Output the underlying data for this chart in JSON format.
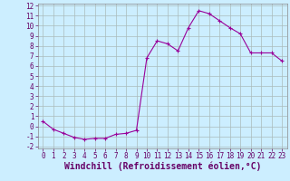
{
  "xlabel": "Windchill (Refroidissement éolien,°C)",
  "x": [
    0,
    1,
    2,
    3,
    4,
    5,
    6,
    7,
    8,
    9,
    10,
    11,
    12,
    13,
    14,
    15,
    16,
    17,
    18,
    19,
    20,
    21,
    22,
    23
  ],
  "y": [
    0.5,
    -0.3,
    -0.7,
    -1.1,
    -1.3,
    -1.2,
    -1.2,
    -0.8,
    -0.7,
    -0.4,
    6.8,
    8.5,
    8.2,
    7.5,
    9.8,
    11.5,
    11.2,
    10.5,
    9.8,
    9.2,
    7.3,
    7.3,
    7.3,
    6.5
  ],
  "line_color": "#990099",
  "marker": "+",
  "bg_color": "#cceeff",
  "grid_color": "#aabbbb",
  "ylim": [
    -2,
    12
  ],
  "xlim": [
    -0.5,
    23.5
  ],
  "yticks": [
    -2,
    -1,
    0,
    1,
    2,
    3,
    4,
    5,
    6,
    7,
    8,
    9,
    10,
    11,
    12
  ],
  "xticks": [
    0,
    1,
    2,
    3,
    4,
    5,
    6,
    7,
    8,
    9,
    10,
    11,
    12,
    13,
    14,
    15,
    16,
    17,
    18,
    19,
    20,
    21,
    22,
    23
  ],
  "tick_label_fontsize": 5.5,
  "xlabel_fontsize": 7,
  "label_color": "#660066"
}
